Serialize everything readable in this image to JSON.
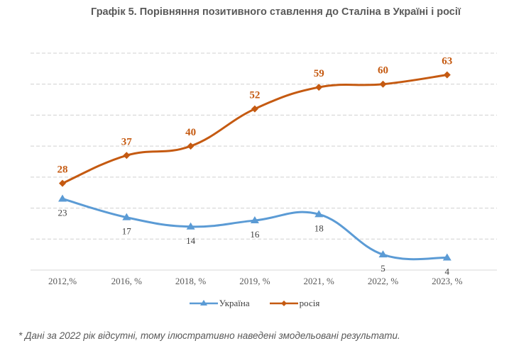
{
  "chart_data": {
    "type": "line",
    "title": "Графік 5. Порівняння позитивного ставлення до Сталіна в Україні і росії",
    "categories": [
      "2012,%",
      "2016, %",
      "2018, %",
      "2019, %",
      "2021, %",
      "2022, %",
      "2023, %"
    ],
    "series": [
      {
        "name": "Україна",
        "values": [
          23,
          17,
          14,
          16,
          18,
          5,
          4
        ],
        "color": "#5B9BD5",
        "marker": "triangle"
      },
      {
        "name": "росія",
        "values": [
          28,
          37,
          40,
          52,
          59,
          60,
          63
        ],
        "color": "#C55A11",
        "marker": "diamond"
      }
    ],
    "xlabel": "",
    "ylabel": "",
    "ylim": [
      0,
      70
    ],
    "grid": true,
    "legend": "bottom"
  },
  "footnote": "* Дані за 2022 рік відсутні, тому ілюстративно наведені змодельовані результати."
}
